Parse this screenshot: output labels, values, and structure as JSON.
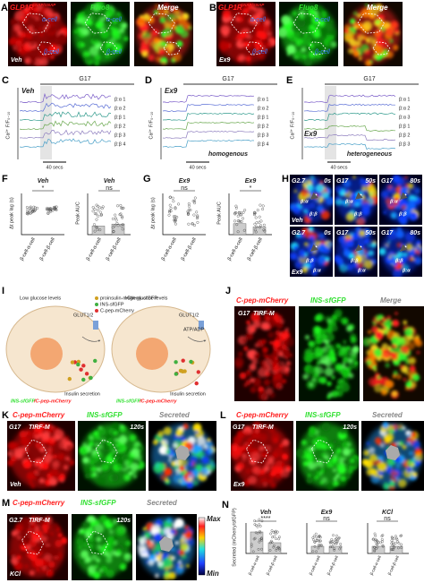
{
  "A": {
    "letter": "A",
    "gene": "GLP1R",
    "genotype": "SNAP/SNAP",
    "dye": "Fluo8",
    "merge": "Merge",
    "alpha": "α-cell",
    "beta": "β-cell",
    "treatment": "Veh"
  },
  "B": {
    "letter": "B",
    "gene": "GLP1R",
    "genotype": "SNAP/SNAP",
    "dye": "Fluo8",
    "merge": "Merge",
    "alpha": "α-cell",
    "beta": "β-cell",
    "treatment": "Ex9"
  },
  "C": {
    "letter": "C",
    "stimulus": "G17",
    "treatment": "Veh",
    "y_label": "Ca²⁺ F/F₀₋₁₀",
    "traces": [
      "β:α 1",
      "β:α 2",
      "β:β 1",
      "β:β 2",
      "β:β 3",
      "β:β 4"
    ],
    "scale": "40 secs"
  },
  "D": {
    "letter": "D",
    "stimulus": "G17",
    "treatment": "Ex9",
    "y_label": "Ca²⁺ F/F₀₋₁₀",
    "traces": [
      "β:α 1",
      "β:α 2",
      "β:β 1",
      "β:β 2",
      "β:β 3",
      "β:β 4"
    ],
    "scale": "40 secs",
    "note": "homogenous"
  },
  "E": {
    "letter": "E",
    "stimulus": "G17",
    "treatment": "Ex9",
    "y_label": "Ca²⁺ F/F₀₋₁₀",
    "traces": [
      "β:α 1",
      "β:α 2",
      "β:α 3",
      "β:β 1",
      "β:β 2",
      "β:β 3"
    ],
    "scale": "40 secs",
    "note": "heterogeneous"
  },
  "F": {
    "letter": "F",
    "left": {
      "title": "Veh",
      "y_label": "Δt peak lag (s)",
      "sig": "*"
    },
    "right": {
      "title": "Veh",
      "y_label": "Peak AUC",
      "sig": "ns"
    },
    "x_labels": [
      "β-cell-α-cell",
      "β-cell-β-cell"
    ]
  },
  "G": {
    "letter": "G",
    "left": {
      "title": "Ex9",
      "y_label": "Δt peak lag (s)",
      "sig": "ns"
    },
    "right": {
      "title": "Ex9",
      "y_label": "Peak AUC",
      "sig": "*"
    },
    "x_labels": [
      "β-cell-α-cell",
      "β-cell-β-cell"
    ]
  },
  "H": {
    "letter": "H",
    "rows": [
      {
        "treatment": "Veh",
        "frames": [
          {
            "glucose": "G2.7",
            "time": "0s"
          },
          {
            "glucose": "G17",
            "time": "50s"
          },
          {
            "glucose": "G17",
            "time": "80s"
          }
        ]
      },
      {
        "treatment": "Ex9",
        "frames": [
          {
            "glucose": "G2.7",
            "time": "0s"
          },
          {
            "glucose": "G17",
            "time": "50s"
          },
          {
            "glucose": "G17",
            "time": "80s"
          }
        ]
      }
    ],
    "pair_alpha": "β:α",
    "pair_beta": "β:β"
  },
  "I": {
    "letter": "I",
    "low": "Low glucose levels",
    "high": "High glucose levels",
    "legend": [
      "proinsulin-mCherry-sfGFP",
      "INS-sfGFP",
      "C-pep-mCherry"
    ],
    "transporter": "GLUT1/2",
    "atp": "ATP/ADP",
    "secretion": "Insulin secretion",
    "bottom_green": "INS-sfGFP",
    "bottom_red": "/C-pep-mCherry"
  },
  "J": {
    "letter": "J",
    "red": "C-pep-mCherry",
    "green": "INS-sfGFP",
    "merge": "Merge",
    "glucose": "G17",
    "mode": "TIRF-M"
  },
  "K": {
    "letter": "K",
    "red": "C-pep-mCherry",
    "green": "INS-sfGFP",
    "secreted": "Secreted",
    "glucose": "G17",
    "mode": "TIRF-M",
    "time": "120s",
    "treatment": "Veh"
  },
  "L": {
    "letter": "L",
    "red": "C-pep-mCherry",
    "green": "INS-sfGFP",
    "secreted": "Secreted",
    "glucose": "G17",
    "mode": "TIRF-M",
    "time": "120s",
    "treatment": "Ex9"
  },
  "M": {
    "letter": "M",
    "red": "C-pep-mCherry",
    "green": "INS-sfGFP",
    "secreted": "Secreted",
    "glucose": "G2.7",
    "mode": "TIRF-M",
    "time": "120s",
    "treatment": "KCl",
    "scale_max": "Max",
    "scale_min": "Min"
  },
  "N": {
    "letter": "N",
    "y_label": "Secreted (mCherry/sfGFP)",
    "groups": [
      {
        "title": "Veh",
        "sig": "****"
      },
      {
        "title": "Ex9",
        "sig": "ns"
      },
      {
        "title": "KCl",
        "sig": "ns"
      }
    ],
    "x_labels": [
      "β-cell-α-cell",
      "β-cell-β-cell"
    ]
  }
}
